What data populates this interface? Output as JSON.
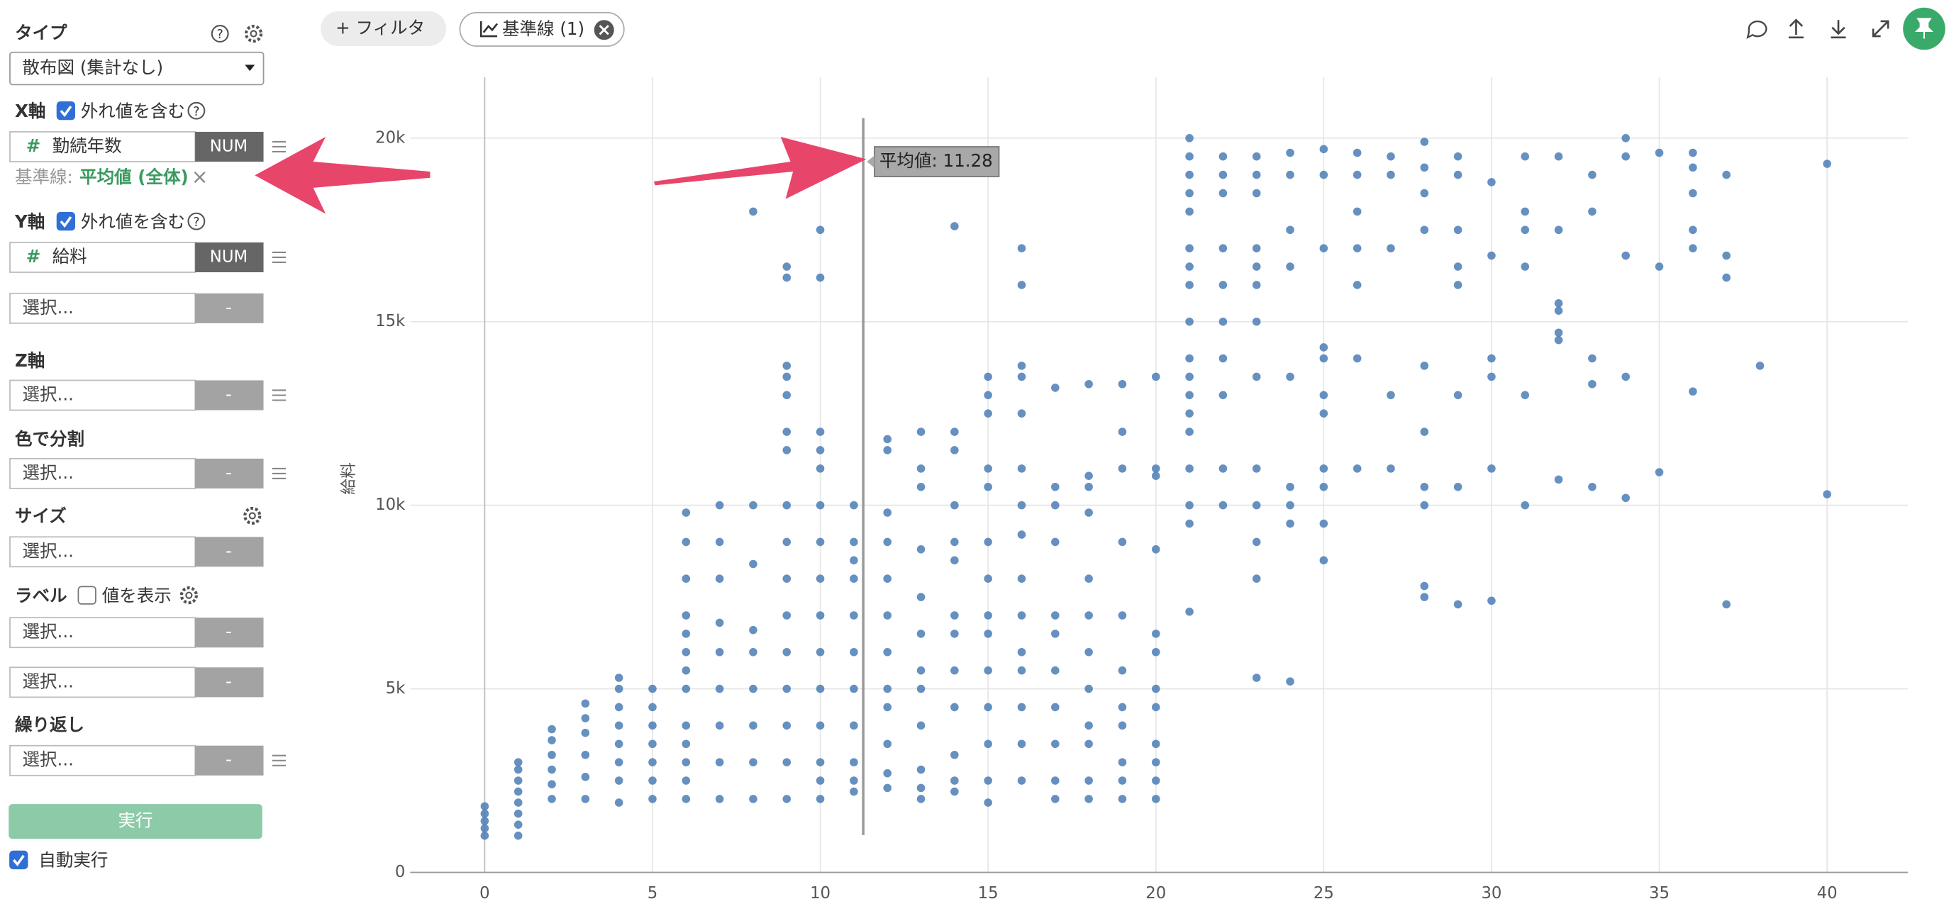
{
  "toolbar": {
    "filter": "+ フィルタ",
    "reference": "基準線 (1)"
  },
  "sidebar": {
    "type_label": "タイプ",
    "help_icon": "?",
    "chart_type": "散布図 (集計なし)",
    "x_axis": {
      "label": "X軸",
      "include_outliers": "外れ値を含む",
      "field_icon": "#",
      "field": "勤続年数",
      "field_type": "NUM",
      "reference_prefix": "基準線:",
      "reference_value": "平均値 (全体)",
      "remove": "×"
    },
    "y_axis": {
      "label": "Y軸",
      "include_outliers": "外れ値を含む",
      "field_icon": "#",
      "field": "給料",
      "field_type": "NUM"
    },
    "placeholder": "選択...",
    "empty_type": "-",
    "z_axis": "Z軸",
    "color_split": "色で分割",
    "size": "サイズ",
    "label": "ラベル",
    "show_values": "値を表示",
    "repeat": "繰り返し",
    "run": "実行",
    "auto_run": "自動実行"
  },
  "chart_data": {
    "type": "scatter",
    "y_label": "給料",
    "color": "#4a7db5",
    "grid": true,
    "xlim": [
      -2.22,
      42.41
    ],
    "ylim": [
      0,
      21660
    ],
    "xticks": [
      0,
      5,
      10,
      15,
      20,
      25,
      30,
      35,
      40
    ],
    "yticks": [
      0,
      {
        "value": 5000,
        "label": "5k"
      },
      {
        "value": 10000,
        "label": "10k"
      },
      {
        "value": 15000,
        "label": "15k"
      },
      {
        "value": 20000,
        "label": "20k"
      }
    ],
    "reference_line": {
      "value": 11.28,
      "label": "平均値: 11.28"
    },
    "series": [
      {
        "x": [
          0,
          0,
          0,
          0,
          0,
          1,
          1,
          1,
          1,
          1,
          1,
          1,
          1,
          2,
          2,
          2,
          2,
          2,
          2,
          3,
          3,
          3,
          3,
          3,
          3,
          4,
          4,
          4,
          4,
          4,
          4,
          4,
          4,
          5,
          5,
          5,
          5,
          5,
          5,
          5,
          6,
          6,
          6,
          6,
          6,
          6,
          6,
          6,
          6,
          6,
          6,
          6,
          6,
          7,
          7,
          7,
          7,
          7,
          7,
          7,
          7,
          7,
          8,
          8,
          8,
          8,
          8,
          8,
          8,
          8,
          8,
          9,
          9,
          9,
          9,
          9,
          9,
          9,
          9,
          9,
          9,
          9,
          9,
          9,
          9,
          9,
          9,
          10,
          10,
          10,
          10,
          10,
          10,
          10,
          10,
          10,
          10,
          10,
          10,
          10,
          10,
          10,
          11,
          11,
          11,
          11,
          11,
          11,
          11,
          11,
          11,
          11,
          11,
          12,
          12,
          12,
          12,
          12,
          12,
          12,
          12,
          12,
          12,
          12,
          12,
          13,
          13,
          13,
          13,
          13,
          13,
          13,
          13,
          13,
          13,
          13,
          13,
          14,
          14,
          14,
          14,
          14,
          14,
          14,
          14,
          14,
          14,
          14,
          14,
          14,
          15,
          15,
          15,
          15,
          15,
          15,
          15,
          15,
          15,
          15,
          15,
          15,
          15,
          15,
          16,
          16,
          16,
          16,
          16,
          16,
          16,
          16,
          16,
          16,
          16,
          16,
          16,
          16,
          16,
          17,
          17,
          17,
          17,
          17,
          17,
          17,
          17,
          17,
          17,
          17,
          18,
          18,
          18,
          18,
          18,
          18,
          18,
          18,
          18,
          18,
          18,
          18,
          19,
          19,
          19,
          19,
          19,
          19,
          19,
          19,
          19,
          19,
          19,
          20,
          20,
          20,
          20,
          20,
          20,
          20,
          20,
          20,
          20,
          20,
          20,
          21,
          21,
          21,
          21,
          21,
          21,
          21,
          21,
          21,
          21,
          21,
          21,
          21,
          21,
          21,
          21,
          21,
          21,
          22,
          22,
          22,
          22,
          22,
          22,
          22,
          22,
          22,
          22,
          23,
          23,
          23,
          23,
          23,
          23,
          23,
          23,
          23,
          23,
          23,
          23,
          23,
          24,
          24,
          24,
          24,
          24,
          24,
          24,
          24,
          24,
          25,
          25,
          25,
          25,
          25,
          25,
          25,
          25,
          25,
          25,
          25,
          26,
          26,
          26,
          26,
          26,
          26,
          26,
          27,
          27,
          27,
          27,
          27,
          28,
          28,
          28,
          28,
          28,
          28,
          28,
          28,
          28,
          28,
          29,
          29,
          29,
          29,
          29,
          29,
          29,
          29,
          30,
          30,
          30,
          30,
          30,
          30,
          31,
          31,
          31,
          31,
          31,
          31,
          32,
          32,
          32,
          32,
          32,
          32,
          32,
          33,
          33,
          33,
          33,
          33,
          34,
          34,
          34,
          34,
          34,
          35,
          35,
          35,
          36,
          36,
          36,
          36,
          36,
          36,
          37,
          37,
          37,
          37,
          38,
          40,
          40
        ],
        "values": [
          1000,
          1200,
          1400,
          1600,
          1800,
          1000,
          1300,
          1600,
          1900,
          2200,
          2500,
          2800,
          3000,
          2000,
          2400,
          2800,
          3200,
          3600,
          3900,
          2000,
          2600,
          3200,
          3800,
          4200,
          4600,
          1900,
          2500,
          3000,
          3500,
          4000,
          4500,
          5000,
          5300,
          2000,
          2500,
          3000,
          3500,
          4000,
          4500,
          5000,
          2000,
          2500,
          3000,
          3500,
          4000,
          5000,
          5500,
          6000,
          6500,
          7000,
          8000,
          9000,
          9800,
          2000,
          3000,
          4000,
          5000,
          6000,
          6800,
          8000,
          9000,
          10000,
          2000,
          3000,
          4000,
          5000,
          6000,
          6600,
          8400,
          10000,
          18000,
          2000,
          3000,
          4000,
          5000,
          6000,
          7000,
          8000,
          9000,
          10000,
          11500,
          12000,
          13000,
          13500,
          13800,
          16200,
          16500,
          2000,
          2500,
          3000,
          4000,
          5000,
          6000,
          7000,
          8000,
          9000,
          10000,
          11000,
          11500,
          12000,
          16200,
          17500,
          2200,
          2500,
          3000,
          4000,
          5000,
          6000,
          7000,
          8000,
          8500,
          9000,
          10000,
          2300,
          2700,
          3500,
          4500,
          5000,
          6000,
          7000,
          8000,
          9000,
          9800,
          11500,
          11800,
          2000,
          2300,
          2800,
          4000,
          5000,
          5500,
          6500,
          7500,
          8800,
          10500,
          11000,
          12000,
          2200,
          2500,
          3200,
          4500,
          5500,
          6500,
          7000,
          8500,
          9000,
          10000,
          11500,
          12000,
          17600,
          1900,
          2500,
          3500,
          4500,
          5500,
          6500,
          7000,
          8000,
          9000,
          10500,
          11000,
          12500,
          13000,
          13500,
          2500,
          3500,
          4500,
          5500,
          6000,
          7000,
          8000,
          9200,
          10000,
          11000,
          12500,
          13500,
          13800,
          16000,
          17000,
          2000,
          2500,
          3500,
          4500,
          5500,
          6500,
          7000,
          9000,
          10000,
          10500,
          13200,
          2000,
          2500,
          3500,
          4000,
          5000,
          6000,
          7000,
          8000,
          9800,
          10500,
          10800,
          13300,
          2000,
          2500,
          3000,
          4000,
          4500,
          5500,
          7000,
          9000,
          11000,
          12000,
          13300,
          2000,
          2500,
          3000,
          3500,
          4500,
          5000,
          6000,
          6500,
          8800,
          10800,
          11000,
          13500,
          7100,
          9500,
          10000,
          11000,
          12000,
          12500,
          13000,
          13500,
          14000,
          15000,
          16000,
          16500,
          17000,
          18000,
          18500,
          19000,
          19500,
          20000,
          10000,
          11000,
          13000,
          14000,
          15000,
          16000,
          17000,
          18500,
          19000,
          19500,
          5300,
          8000,
          9000,
          10000,
          11000,
          13500,
          15000,
          16000,
          16500,
          17000,
          18500,
          19000,
          19500,
          5200,
          9500,
          10000,
          10500,
          13500,
          16500,
          17500,
          19000,
          19600,
          8500,
          9500,
          10500,
          11000,
          12500,
          13000,
          14000,
          14300,
          17000,
          19000,
          19700,
          11000,
          14000,
          16000,
          17000,
          18000,
          19000,
          19600,
          11000,
          13000,
          17000,
          19000,
          19500,
          7500,
          7800,
          10000,
          10500,
          12000,
          13800,
          17500,
          18500,
          19200,
          19900,
          7300,
          10500,
          13000,
          16000,
          16500,
          17500,
          19000,
          19500,
          7400,
          11000,
          13500,
          14000,
          16800,
          18800,
          10000,
          13000,
          16500,
          17500,
          18000,
          19500,
          10700,
          14500,
          14700,
          15300,
          15500,
          17500,
          19500,
          10500,
          13300,
          14000,
          18000,
          19000,
          10200,
          13500,
          16800,
          19500,
          20000,
          10900,
          16500,
          19600,
          13100,
          17000,
          17500,
          18500,
          19200,
          19600,
          7300,
          16200,
          16800,
          19000,
          13800,
          10300,
          19300
        ]
      }
    ]
  }
}
